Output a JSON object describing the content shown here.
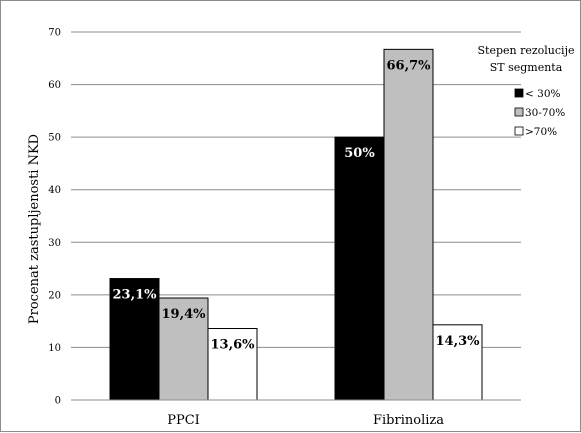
{
  "chart_data": {
    "type": "bar",
    "categories": [
      "PPCI",
      "Fibrinoliza"
    ],
    "series": [
      {
        "name": "< 30%",
        "values": [
          23.1,
          50
        ],
        "labels": [
          "23,1%",
          "50%"
        ],
        "color": "#000000",
        "label_color": "#ffffff"
      },
      {
        "name": "30-70%",
        "values": [
          19.4,
          66.7
        ],
        "labels": [
          "19,4%",
          "66,7%"
        ],
        "color": "#bfbfbf",
        "label_color": "#000000"
      },
      {
        "name": ">70%",
        "values": [
          13.6,
          14.3
        ],
        "labels": [
          "13,6%",
          "14,3%"
        ],
        "color": "#ffffff",
        "label_color": "#000000"
      }
    ],
    "ylabel": "Procenat zastupljenosti NKD",
    "xlabel": "",
    "ylim": [
      0,
      70
    ],
    "yticks": [
      0,
      10,
      20,
      30,
      40,
      50,
      60,
      70
    ],
    "grid": true,
    "legend": {
      "title_lines": [
        "Stepen rezolucije",
        "ST segmenta"
      ],
      "position": "right"
    }
  }
}
